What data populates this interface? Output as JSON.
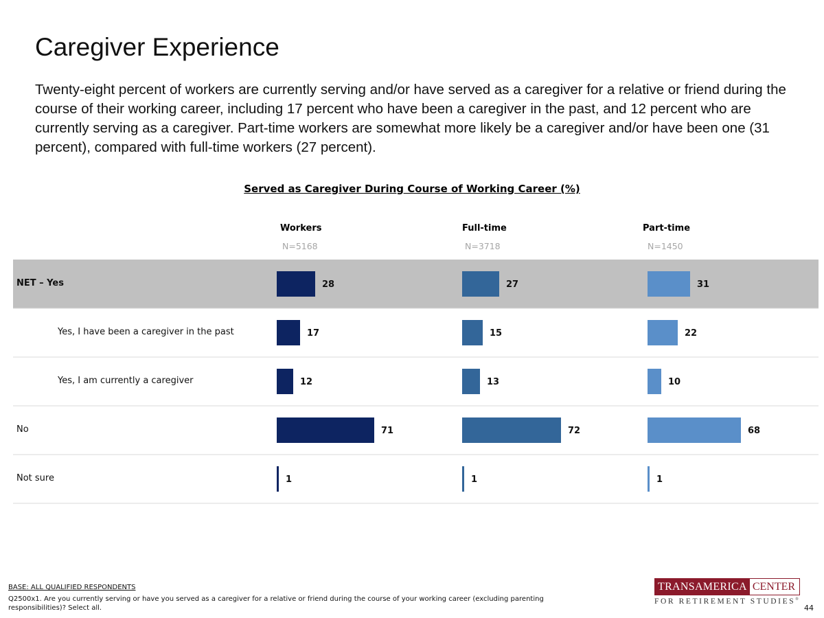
{
  "page": {
    "title": "Caregiver Experience",
    "subtitle": "Twenty-eight percent of workers are currently serving and/or have served as a caregiver for a relative or friend during the course of their working career, including 17 percent who have been a caregiver in the past, and 12 percent who are currently serving as a caregiver. Part-time workers are somewhat more likely be a caregiver and/or have been one (31 percent), compared with full-time workers (27 percent).",
    "page_number": "44"
  },
  "chart_data": {
    "type": "bar",
    "orientation": "horizontal",
    "title": "Served as Caregiver During Course of Working Career (%)",
    "categories": [
      "NET – Yes",
      "Yes, I have been a caregiver in the past",
      "Yes, I am currently a caregiver",
      "No",
      "Not sure"
    ],
    "highlighted_category": "NET – Yes",
    "indented_categories": [
      "Yes, I have been a caregiver in the past",
      "Yes, I am currently a caregiver"
    ],
    "series": [
      {
        "name": "Workers",
        "n": "N=5168",
        "color": "#0d2461",
        "values": [
          28,
          17,
          12,
          71,
          1
        ]
      },
      {
        "name": "Full-time",
        "n": "N=3718",
        "color": "#336699",
        "values": [
          27,
          15,
          13,
          72,
          1
        ]
      },
      {
        "name": "Part-time",
        "n": "N=1450",
        "color": "#5a8fc9",
        "values": [
          31,
          22,
          10,
          68,
          1
        ]
      }
    ],
    "xlim": [
      0,
      100
    ],
    "highlight_color": "#c0c0c0"
  },
  "footnote": {
    "base": "BASE: ALL QUALIFIED RESPONDENTS",
    "question": "Q2500x1. Are you currently serving or have you served as a caregiver for a relative or friend during the course of your working career (excluding parenting responsibilities)? Select all."
  },
  "logo": {
    "brand": "TRANSAMERICA",
    "center": "CENTER",
    "tagline": "FOR RETIREMENT STUDIES",
    "reg_mark": "®"
  }
}
